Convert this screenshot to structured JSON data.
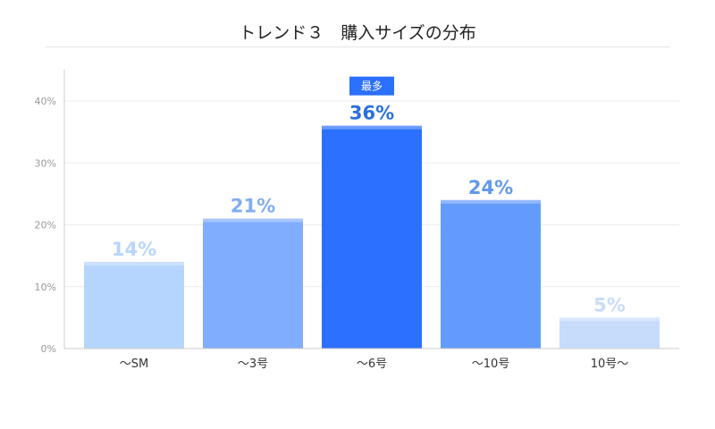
{
  "chart_data": {
    "type": "bar",
    "title": "トレンド３　購入サイズの分布",
    "categories": [
      "～SM",
      "～3号",
      "～6号",
      "～10号",
      "10号～"
    ],
    "values": [
      14,
      21,
      36,
      24,
      5
    ],
    "value_labels": [
      "14%",
      "21%",
      "36%",
      "24%",
      "5%"
    ],
    "yticks": [
      "0%",
      "10%",
      "20%",
      "30%",
      "40%"
    ],
    "ylim": [
      0,
      45
    ],
    "grid": true,
    "colors": [
      "#b5d4fe",
      "#80adfd",
      "#2b70fe",
      "#639bfd",
      "#c7dbfb"
    ],
    "label_colors": [
      "#b8d5fc",
      "#80adee",
      "#2b6fe0",
      "#6199ea",
      "#c8dcf8"
    ],
    "highlight": {
      "index": 2,
      "label": "最多",
      "color": "#2b70fe"
    }
  }
}
